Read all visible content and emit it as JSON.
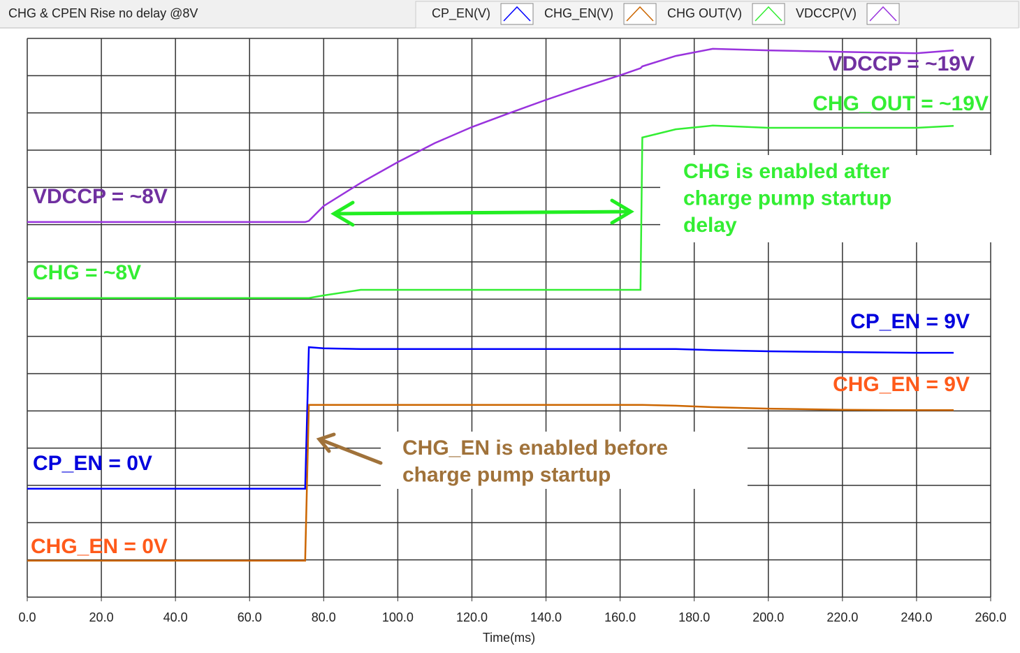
{
  "window_title": "CHG & CPEN Rise no delay @8V",
  "chart_data": {
    "type": "line",
    "x_label": "Time(ms)",
    "x": [
      0,
      75,
      76,
      80,
      90,
      100,
      110,
      120,
      130,
      140,
      150,
      160,
      165.5,
      166,
      175,
      185,
      200,
      220,
      240,
      250
    ],
    "series": [
      {
        "name": "CP_EN(V)",
        "color": "#0000ff",
        "values": [
          2.91,
          2.91,
          6.71,
          6.68,
          6.66,
          6.66,
          6.66,
          6.66,
          6.66,
          6.66,
          6.66,
          6.66,
          6.66,
          6.66,
          6.66,
          6.63,
          6.6,
          6.58,
          6.56,
          6.56
        ]
      },
      {
        "name": "CHG_EN(V)",
        "color": "#cc6600",
        "values": [
          0.98,
          0.98,
          5.16,
          5.16,
          5.16,
          5.16,
          5.16,
          5.16,
          5.16,
          5.16,
          5.16,
          5.16,
          5.16,
          5.16,
          5.14,
          5.1,
          5.06,
          5.03,
          5.02,
          5.02
        ]
      },
      {
        "name": "CHG OUT(V)",
        "color": "#33ee33",
        "values": [
          8.03,
          8.03,
          8.03,
          8.1,
          8.25,
          8.25,
          8.25,
          8.25,
          8.25,
          8.25,
          8.25,
          8.25,
          8.25,
          12.34,
          12.56,
          12.66,
          12.6,
          12.6,
          12.6,
          12.65
        ]
      },
      {
        "name": "VDCCP(V)",
        "color": "#9933dd",
        "values": [
          10.07,
          10.07,
          10.1,
          10.5,
          11.12,
          11.68,
          12.19,
          12.62,
          12.99,
          13.35,
          13.69,
          14.01,
          14.2,
          14.25,
          14.53,
          14.72,
          14.68,
          14.64,
          14.6,
          14.68
        ]
      }
    ],
    "xlim": [
      0,
      260
    ],
    "xticks": [
      {
        "value": 0,
        "label": "0.0"
      },
      {
        "value": 20,
        "label": "20.0"
      },
      {
        "value": 40,
        "label": "40.0"
      },
      {
        "value": 60,
        "label": "60.0"
      },
      {
        "value": 80,
        "label": "80.0"
      },
      {
        "value": 100,
        "label": "100.0"
      },
      {
        "value": 120,
        "label": "120.0"
      },
      {
        "value": 140,
        "label": "140.0"
      },
      {
        "value": 160,
        "label": "160.0"
      },
      {
        "value": 180,
        "label": "180.0"
      },
      {
        "value": 200,
        "label": "200.0"
      },
      {
        "value": 220,
        "label": "220.0"
      },
      {
        "value": 240,
        "label": "240.0"
      },
      {
        "value": 260,
        "label": "260.0"
      }
    ],
    "ylim": [
      0,
      15
    ],
    "yticks": [
      0,
      1,
      2,
      3,
      4,
      5,
      6,
      7,
      8,
      9,
      10,
      11,
      12,
      13,
      14,
      15
    ],
    "grid": true,
    "annotations": [
      {
        "text": "VDCCP = ~19V",
        "color": "#7030a0"
      },
      {
        "text": "CHG_OUT = ~19V",
        "color": "#33ee33"
      },
      {
        "text": "VDCCP = ~8V",
        "color": "#7030a0"
      },
      {
        "text": "CHG = ~8V",
        "color": "#33ee33"
      },
      {
        "text": "CP_EN = 9V",
        "color": "#0000dd"
      },
      {
        "text": "CHG_EN = 9V",
        "color": "#ff5a1a"
      },
      {
        "text": "CP_EN = 0V",
        "color": "#0000dd"
      },
      {
        "text": "CHG_EN = 0V",
        "color": "#ff5a1a"
      }
    ],
    "notes": [
      {
        "lines": [
          "CHG is enabled after",
          "charge pump startup",
          "delay"
        ],
        "color": "#33ee33"
      },
      {
        "lines": [
          "CHG_EN is enabled before",
          "charge pump startup"
        ],
        "color": "#a0723a"
      }
    ]
  }
}
